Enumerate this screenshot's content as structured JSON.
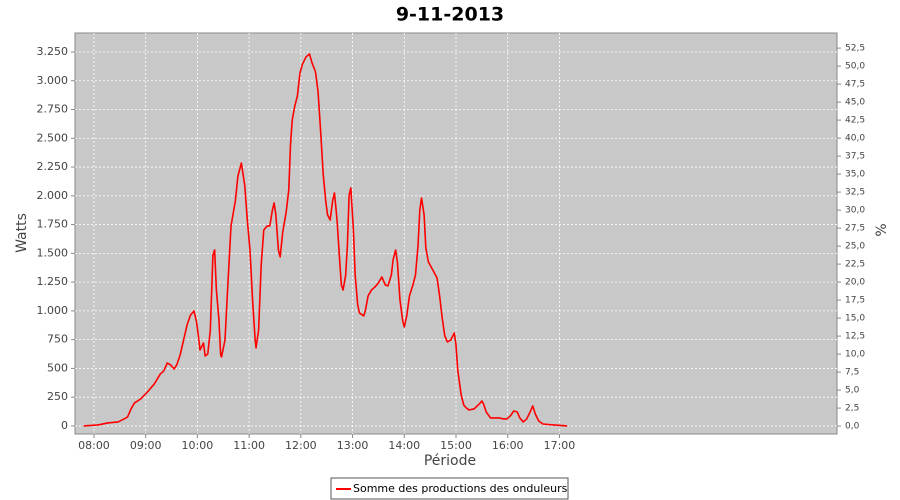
{
  "chart_data": {
    "type": "line",
    "title": "9-11-2013",
    "x_label": "Période",
    "y_label": "Watts",
    "y2_label": "%",
    "grid": true,
    "legend": "bottom",
    "xlim": [
      458,
      1342
    ],
    "xticks": [
      {
        "value": 480,
        "label": "08:00"
      },
      {
        "value": 540,
        "label": "09:00"
      },
      {
        "value": 600,
        "label": "10:00"
      },
      {
        "value": 660,
        "label": "11:00"
      },
      {
        "value": 720,
        "label": "12:00"
      },
      {
        "value": 780,
        "label": "13:00"
      },
      {
        "value": 840,
        "label": "14:00"
      },
      {
        "value": 900,
        "label": "15:00"
      },
      {
        "value": 960,
        "label": "16:00"
      },
      {
        "value": 1020,
        "label": "17:00"
      }
    ],
    "ylim": [
      -70,
      3415
    ],
    "yticks": [
      0,
      250,
      500,
      750,
      {
        "value": 1000,
        "label": "1.000"
      },
      {
        "value": 1250,
        "label": "1.250"
      },
      {
        "value": 1500,
        "label": "1.500"
      },
      {
        "value": 1750,
        "label": "1.750"
      },
      {
        "value": 2000,
        "label": "2.000"
      },
      {
        "value": 2250,
        "label": "2.250"
      },
      {
        "value": 2500,
        "label": "2.500"
      },
      {
        "value": 2750,
        "label": "2.750"
      },
      {
        "value": 3000,
        "label": "3.000"
      },
      {
        "value": 3250,
        "label": "3.250"
      }
    ],
    "y2lim": [
      -1.1,
      54.6
    ],
    "y2ticks": [
      {
        "value": 0,
        "label": "0,0"
      },
      {
        "value": 2.5,
        "label": "2,5"
      },
      {
        "value": 5,
        "label": "5,0"
      },
      {
        "value": 7.5,
        "label": "7,5"
      },
      {
        "value": 10,
        "label": "10,0"
      },
      {
        "value": 12.5,
        "label": "12,5"
      },
      {
        "value": 15,
        "label": "15,0"
      },
      {
        "value": 17.5,
        "label": "17,5"
      },
      {
        "value": 20,
        "label": "20,0"
      },
      {
        "value": 22.5,
        "label": "22,5"
      },
      {
        "value": 25,
        "label": "25,0"
      },
      {
        "value": 27.5,
        "label": "27,5"
      },
      {
        "value": 30,
        "label": "30,0"
      },
      {
        "value": 32.5,
        "label": "32,5"
      },
      {
        "value": 35,
        "label": "35,0"
      },
      {
        "value": 37.5,
        "label": "37,5"
      },
      {
        "value": 40,
        "label": "40,0"
      },
      {
        "value": 42.5,
        "label": "42,5"
      },
      {
        "value": 45,
        "label": "45,0"
      },
      {
        "value": 47.5,
        "label": "47,5"
      },
      {
        "value": 50,
        "label": "50,0"
      },
      {
        "value": 52.5,
        "label": "52,5"
      }
    ],
    "x": [
      468,
      485,
      496,
      508,
      515,
      519,
      523,
      527,
      534,
      542,
      550,
      557,
      561,
      565,
      569,
      573,
      576,
      580,
      584,
      588,
      592,
      596,
      599,
      601,
      603,
      607,
      609,
      612,
      615,
      618,
      620,
      622,
      625,
      627,
      628,
      632,
      635,
      639,
      644,
      647,
      651,
      655,
      658,
      661,
      664,
      667,
      668,
      671,
      674,
      677,
      681,
      684,
      687,
      689,
      691,
      694,
      696,
      699,
      703,
      706,
      708,
      710,
      713,
      716,
      719,
      722,
      726,
      730,
      733,
      737,
      740,
      743,
      746,
      749,
      751,
      754,
      757,
      759,
      762,
      765,
      767,
      769,
      772,
      774,
      776,
      778,
      781,
      783,
      786,
      788,
      793,
      795,
      798,
      802,
      806,
      810,
      814,
      818,
      821,
      825,
      827,
      830,
      832,
      835,
      838,
      840,
      843,
      846,
      850,
      853,
      856,
      858,
      860,
      863,
      865,
      868,
      873,
      878,
      881,
      884,
      887,
      890,
      894,
      898,
      900,
      902,
      906,
      909,
      912,
      915,
      921,
      927,
      930,
      932,
      935,
      940,
      945,
      950,
      955,
      959,
      963,
      967,
      971,
      974,
      978,
      982,
      986,
      989,
      992,
      996,
      1001,
      1013,
      1029
    ],
    "series": [
      {
        "name": "Somme des productions des onduleurs",
        "color": "#ff0000",
        "values": [
          0,
          9,
          26,
          35,
          61,
          78,
          148,
          200,
          234,
          295,
          365,
          452,
          478,
          547,
          530,
          495,
          530,
          617,
          747,
          877,
          964,
          999,
          904,
          791,
          660,
          721,
          608,
          625,
          834,
          1486,
          1530,
          1182,
          921,
          617,
          600,
          747,
          1182,
          1738,
          1955,
          2172,
          2285,
          2085,
          1781,
          1529,
          1095,
          747,
          678,
          834,
          1399,
          1703,
          1738,
          1738,
          1877,
          1938,
          1834,
          1529,
          1469,
          1686,
          1860,
          2051,
          2442,
          2659,
          2781,
          2868,
          3068,
          3146,
          3207,
          3233,
          3155,
          3077,
          2903,
          2555,
          2181,
          1946,
          1834,
          1790,
          1964,
          2025,
          1790,
          1443,
          1225,
          1182,
          1312,
          1573,
          2007,
          2068,
          1703,
          1312,
          1051,
          982,
          956,
          1008,
          1130,
          1182,
          1208,
          1243,
          1295,
          1225,
          1217,
          1312,
          1443,
          1529,
          1425,
          1095,
          921,
          860,
          964,
          1130,
          1225,
          1312,
          1573,
          1877,
          1981,
          1834,
          1547,
          1425,
          1356,
          1286,
          1130,
          938,
          782,
          730,
          747,
          808,
          704,
          487,
          269,
          182,
          156,
          139,
          148,
          191,
          217,
          191,
          122,
          70,
          70,
          70,
          61,
          61,
          87,
          130,
          122,
          70,
          35,
          61,
          122,
          174,
          104,
          43,
          17,
          9,
          0
        ]
      }
    ]
  }
}
